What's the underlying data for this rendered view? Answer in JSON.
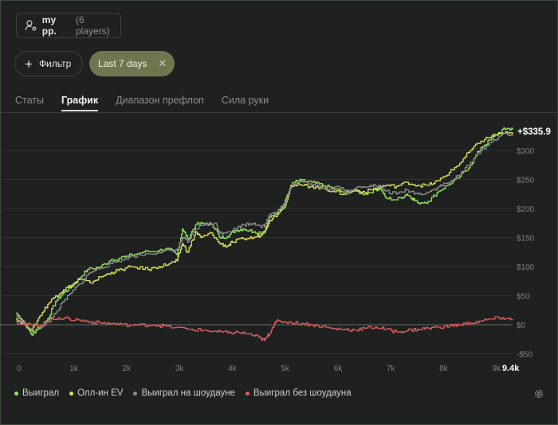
{
  "header": {
    "group_name": "my pp.",
    "group_count": "(6 players)"
  },
  "toolbar": {
    "filter_label": "Фильтр",
    "chip_label": "Last 7 days"
  },
  "tabs": [
    {
      "label": "Статы",
      "active": false
    },
    {
      "label": "График",
      "active": true
    },
    {
      "label": "Диапазон префлоп",
      "active": false
    },
    {
      "label": "Сила руки",
      "active": false
    }
  ],
  "chart_data": {
    "type": "line",
    "current_value_label": "+$335.9",
    "xlim": [
      0,
      9400
    ],
    "ylim": [
      -50,
      350
    ],
    "x_ticks": [
      {
        "value": 0,
        "label": "0"
      },
      {
        "value": 1000,
        "label": "1k"
      },
      {
        "value": 2000,
        "label": "2k"
      },
      {
        "value": 3000,
        "label": "3k"
      },
      {
        "value": 4000,
        "label": "4k"
      },
      {
        "value": 5000,
        "label": "5k"
      },
      {
        "value": 6000,
        "label": "6k"
      },
      {
        "value": 7000,
        "label": "7k"
      },
      {
        "value": 8000,
        "label": "8k"
      },
      {
        "value": 9000,
        "label": "9k"
      },
      {
        "value": 9400,
        "label": "9.4k"
      }
    ],
    "y_ticks": [
      {
        "value": 300,
        "label": "$300"
      },
      {
        "value": 250,
        "label": "$250"
      },
      {
        "value": 200,
        "label": "$200"
      },
      {
        "value": 150,
        "label": "$150"
      },
      {
        "value": 100,
        "label": "$100"
      },
      {
        "value": 50,
        "label": "$50"
      },
      {
        "value": 0,
        "label": "$0"
      },
      {
        "value": -50,
        "label": "-$50"
      }
    ],
    "grid": true,
    "legend_position": "bottom-left",
    "series": [
      {
        "name": "Выиграл",
        "color": "#8fe65a",
        "points": [
          [
            0,
            20
          ],
          [
            150,
            5
          ],
          [
            300,
            -18
          ],
          [
            400,
            -8
          ],
          [
            600,
            10
          ],
          [
            750,
            40
          ],
          [
            900,
            55
          ],
          [
            1050,
            65
          ],
          [
            1200,
            80
          ],
          [
            1350,
            95
          ],
          [
            1600,
            100
          ],
          [
            1800,
            112
          ],
          [
            2100,
            118
          ],
          [
            2400,
            125
          ],
          [
            2700,
            128
          ],
          [
            2900,
            130
          ],
          [
            3050,
            120
          ],
          [
            3150,
            165
          ],
          [
            3250,
            148
          ],
          [
            3400,
            172
          ],
          [
            3600,
            175
          ],
          [
            3800,
            165
          ],
          [
            3850,
            150
          ],
          [
            4000,
            152
          ],
          [
            4150,
            162
          ],
          [
            4300,
            165
          ],
          [
            4500,
            160
          ],
          [
            4700,
            158
          ],
          [
            4750,
            170
          ],
          [
            4800,
            185
          ],
          [
            5000,
            198
          ],
          [
            5100,
            205
          ],
          [
            5200,
            235
          ],
          [
            5250,
            245
          ],
          [
            5400,
            248
          ],
          [
            5600,
            245
          ],
          [
            5800,
            240
          ],
          [
            6000,
            235
          ],
          [
            6200,
            228
          ],
          [
            6400,
            230
          ],
          [
            6600,
            225
          ],
          [
            6800,
            232
          ],
          [
            6900,
            235
          ],
          [
            7000,
            218
          ],
          [
            7200,
            215
          ],
          [
            7400,
            225
          ],
          [
            7500,
            218
          ],
          [
            7600,
            210
          ],
          [
            7800,
            212
          ],
          [
            8000,
            230
          ],
          [
            8200,
            242
          ],
          [
            8400,
            255
          ],
          [
            8600,
            275
          ],
          [
            8800,
            305
          ],
          [
            9000,
            320
          ],
          [
            9200,
            335
          ],
          [
            9300,
            338
          ],
          [
            9400,
            336
          ]
        ]
      },
      {
        "name": "Олл-ин EV",
        "color": "#dfe05c",
        "points": [
          [
            0,
            10
          ],
          [
            150,
            2
          ],
          [
            300,
            -10
          ],
          [
            450,
            15
          ],
          [
            600,
            35
          ],
          [
            750,
            50
          ],
          [
            900,
            60
          ],
          [
            1050,
            68
          ],
          [
            1200,
            78
          ],
          [
            1400,
            72
          ],
          [
            1600,
            82
          ],
          [
            1800,
            90
          ],
          [
            2000,
            95
          ],
          [
            2200,
            100
          ],
          [
            2500,
            95
          ],
          [
            2700,
            100
          ],
          [
            2900,
            105
          ],
          [
            3050,
            110
          ],
          [
            3150,
            140
          ],
          [
            3250,
            125
          ],
          [
            3400,
            160
          ],
          [
            3500,
            150
          ],
          [
            3700,
            158
          ],
          [
            3850,
            140
          ],
          [
            4000,
            135
          ],
          [
            4100,
            142
          ],
          [
            4300,
            148
          ],
          [
            4500,
            150
          ],
          [
            4650,
            155
          ],
          [
            4800,
            180
          ],
          [
            4950,
            190
          ],
          [
            5100,
            215
          ],
          [
            5200,
            240
          ],
          [
            5400,
            240
          ],
          [
            5600,
            238
          ],
          [
            5800,
            235
          ],
          [
            6000,
            230
          ],
          [
            6200,
            225
          ],
          [
            6400,
            232
          ],
          [
            6600,
            228
          ],
          [
            6800,
            235
          ],
          [
            7000,
            240
          ],
          [
            7200,
            238
          ],
          [
            7400,
            245
          ],
          [
            7600,
            240
          ],
          [
            7800,
            240
          ],
          [
            8000,
            248
          ],
          [
            8200,
            262
          ],
          [
            8400,
            278
          ],
          [
            8600,
            300
          ],
          [
            8800,
            316
          ],
          [
            9000,
            325
          ],
          [
            9200,
            330
          ],
          [
            9400,
            328
          ]
        ]
      },
      {
        "name": "Выиграл на шоудауне",
        "color": "#8c8c8c",
        "points": [
          [
            0,
            15
          ],
          [
            150,
            5
          ],
          [
            300,
            -12
          ],
          [
            450,
            -5
          ],
          [
            600,
            5
          ],
          [
            750,
            20
          ],
          [
            900,
            40
          ],
          [
            1050,
            55
          ],
          [
            1200,
            70
          ],
          [
            1400,
            90
          ],
          [
            1600,
            98
          ],
          [
            1800,
            105
          ],
          [
            2000,
            112
          ],
          [
            2200,
            118
          ],
          [
            2500,
            122
          ],
          [
            2700,
            125
          ],
          [
            2900,
            128
          ],
          [
            3050,
            128
          ],
          [
            3150,
            150
          ],
          [
            3250,
            142
          ],
          [
            3400,
            165
          ],
          [
            3600,
            175
          ],
          [
            3800,
            172
          ],
          [
            3850,
            158
          ],
          [
            4000,
            160
          ],
          [
            4150,
            165
          ],
          [
            4300,
            172
          ],
          [
            4500,
            175
          ],
          [
            4700,
            168
          ],
          [
            4800,
            190
          ],
          [
            5000,
            200
          ],
          [
            5100,
            210
          ],
          [
            5200,
            238
          ],
          [
            5300,
            244
          ],
          [
            5500,
            245
          ],
          [
            5700,
            240
          ],
          [
            5900,
            232
          ],
          [
            6100,
            238
          ],
          [
            6300,
            228
          ],
          [
            6500,
            238
          ],
          [
            6700,
            240
          ],
          [
            6900,
            238
          ],
          [
            7000,
            230
          ],
          [
            7200,
            225
          ],
          [
            7400,
            232
          ],
          [
            7600,
            225
          ],
          [
            7800,
            228
          ],
          [
            8000,
            238
          ],
          [
            8200,
            245
          ],
          [
            8400,
            258
          ],
          [
            8600,
            280
          ],
          [
            8800,
            300
          ],
          [
            9000,
            315
          ],
          [
            9200,
            328
          ],
          [
            9400,
            325
          ]
        ]
      },
      {
        "name": "Выиграл без шоудауна",
        "color": "#d9605e",
        "points": [
          [
            0,
            5
          ],
          [
            200,
            0
          ],
          [
            400,
            -2
          ],
          [
            600,
            6
          ],
          [
            800,
            12
          ],
          [
            1000,
            10
          ],
          [
            1200,
            8
          ],
          [
            1400,
            5
          ],
          [
            1600,
            3
          ],
          [
            1800,
            2
          ],
          [
            2000,
            0
          ],
          [
            2300,
            -1
          ],
          [
            2600,
            0
          ],
          [
            2800,
            -2
          ],
          [
            3000,
            -5
          ],
          [
            3300,
            -8
          ],
          [
            3600,
            -10
          ],
          [
            3800,
            -12
          ],
          [
            4000,
            -14
          ],
          [
            4200,
            -13
          ],
          [
            4400,
            -16
          ],
          [
            4600,
            -22
          ],
          [
            4700,
            -27
          ],
          [
            4800,
            -15
          ],
          [
            4900,
            5
          ],
          [
            5000,
            6
          ],
          [
            5200,
            4
          ],
          [
            5400,
            2
          ],
          [
            5600,
            0
          ],
          [
            5800,
            -3
          ],
          [
            6000,
            -7
          ],
          [
            6200,
            -8
          ],
          [
            6400,
            -9
          ],
          [
            6600,
            -6
          ],
          [
            6800,
            -4
          ],
          [
            7000,
            -8
          ],
          [
            7200,
            -12
          ],
          [
            7400,
            -10
          ],
          [
            7600,
            -8
          ],
          [
            7800,
            -6
          ],
          [
            8000,
            -4
          ],
          [
            8200,
            -2
          ],
          [
            8400,
            0
          ],
          [
            8600,
            3
          ],
          [
            8800,
            6
          ],
          [
            9000,
            10
          ],
          [
            9200,
            12
          ],
          [
            9400,
            8
          ]
        ]
      }
    ]
  },
  "footer": {
    "settings_icon": "gear-icon"
  }
}
